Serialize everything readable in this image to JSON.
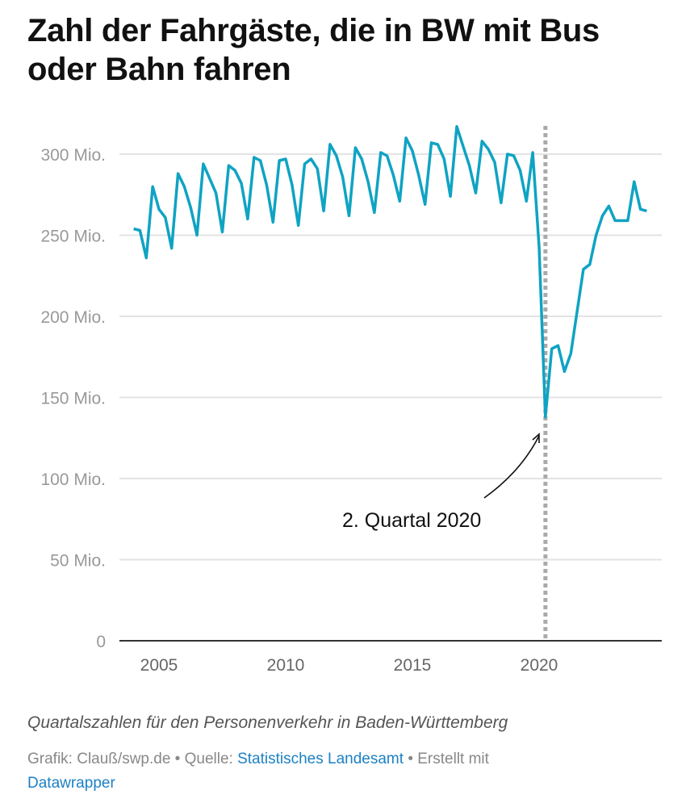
{
  "title": "Zahl der Fahrgäste, die in BW mit Bus oder Bahn fahren",
  "description": "Quartalszahlen für den Personenverkehr in Baden-Württemberg",
  "footer": {
    "prefix": "Grafik: Clauß/swp.de • Quelle: ",
    "source_link": "Statistisches Landesamt",
    "middle": " • Erstellt mit ",
    "tool_link": "Datawrapper"
  },
  "chart_data": {
    "type": "line",
    "title": "Zahl der Fahrgäste, die in BW mit Bus oder Bahn fahren",
    "x_start": "2004 Q1",
    "x_end": "2024 Q2",
    "frequency": "quarterly",
    "x_ticks": [
      "2005",
      "2010",
      "2015",
      "2020"
    ],
    "y_ticks": [
      "0",
      "50 Mio.",
      "100 Mio.",
      "150 Mio.",
      "200 Mio.",
      "250 Mio.",
      "300 Mio."
    ],
    "y_tick_values": [
      0,
      50,
      100,
      150,
      200,
      250,
      300
    ],
    "ylim": [
      0,
      320
    ],
    "y_unit": "Mio.",
    "grid": "horizontal",
    "line_color": "#0fa3c3",
    "values": [
      254,
      253,
      236,
      280,
      266,
      261,
      242,
      288,
      280,
      267,
      250,
      294,
      285,
      276,
      252,
      293,
      290,
      282,
      260,
      298,
      296,
      281,
      258,
      296,
      297,
      281,
      256,
      294,
      297,
      291,
      265,
      306,
      299,
      286,
      262,
      304,
      297,
      283,
      264,
      301,
      299,
      287,
      271,
      310,
      302,
      287,
      269,
      307,
      306,
      297,
      274,
      317,
      305,
      293,
      276,
      308,
      303,
      295,
      270,
      300,
      299,
      290,
      271,
      301,
      243,
      138,
      180,
      182,
      166,
      177,
      203,
      229,
      232,
      250,
      262,
      268,
      259,
      259,
      259,
      283,
      266,
      265
    ],
    "marker_line": {
      "x": "2020 Q2",
      "style": "dotted",
      "color": "#aaaaaa"
    },
    "annotation": {
      "text": "2. Quartal 2020",
      "points_to": "2020 Q2"
    }
  }
}
